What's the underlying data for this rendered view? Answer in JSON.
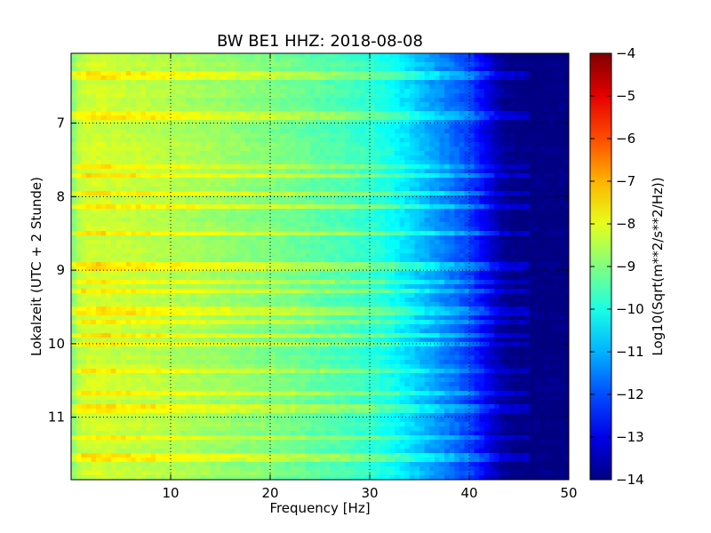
{
  "chart_data": {
    "type": "heatmap",
    "title": "BW BE1 HHZ: 2018-08-08",
    "xlabel": "Frequency [Hz]",
    "ylabel": "Lokalzeit (UTC + 2 Stunde)",
    "xlim": [
      0,
      50
    ],
    "ylim": [
      11.85,
      6.05
    ],
    "x_ticks": [
      10,
      20,
      30,
      40,
      50
    ],
    "y_ticks": [
      7,
      8,
      9,
      10,
      11
    ],
    "grid": true,
    "colormap": "jet",
    "colorbar": {
      "label": "Log10(Sqrt(m**2/s**2/Hz))",
      "range": [
        -14,
        -4
      ],
      "ticks": [
        -4,
        -5,
        -6,
        -7,
        -8,
        -9,
        -10,
        -11,
        -12,
        -13,
        -14
      ]
    },
    "profile": {
      "frequencies_hz": [
        0,
        0.5,
        1,
        2,
        3,
        5,
        8,
        12,
        16,
        20,
        24,
        27,
        30,
        32,
        34,
        36,
        38,
        40,
        41,
        42,
        43,
        44,
        45,
        46,
        50
      ],
      "log10_amplitude": [
        -9.2,
        -8.6,
        -8.3,
        -8.2,
        -8.2,
        -8.3,
        -8.4,
        -8.6,
        -8.8,
        -9.0,
        -9.3,
        -9.5,
        -9.8,
        -10.1,
        -10.6,
        -11.1,
        -11.6,
        -12.1,
        -12.6,
        -13.1,
        -13.6,
        -13.9,
        -14,
        -14,
        -14
      ]
    },
    "bright_bands_hours": [
      6.35,
      6.9,
      7.6,
      7.72,
      7.95,
      8.15,
      8.5,
      8.95,
      9.15,
      9.3,
      9.55,
      9.7,
      9.88,
      10.0,
      10.35,
      10.65,
      10.88,
      11.3,
      11.55
    ]
  }
}
